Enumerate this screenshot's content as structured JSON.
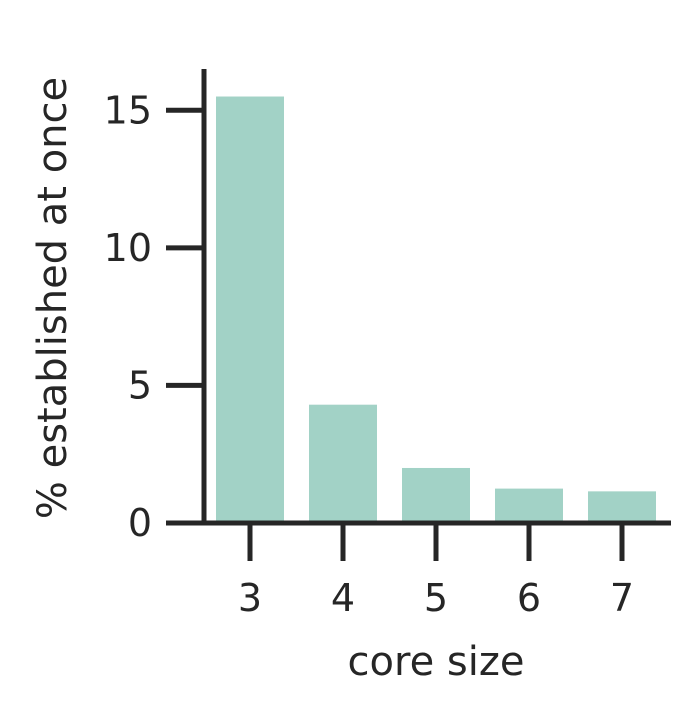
{
  "chart_data": {
    "type": "bar",
    "categories": [
      "3",
      "4",
      "5",
      "6",
      "7"
    ],
    "values": [
      15.5,
      4.3,
      2.0,
      1.25,
      1.15
    ],
    "xlabel": "core size",
    "ylabel": "% established at once",
    "ylim": [
      0,
      16.5
    ],
    "yticks": [
      0,
      5,
      10,
      15
    ],
    "grid": false,
    "colors": {
      "bar": "#a2d2c6",
      "axis": "#262626"
    }
  }
}
